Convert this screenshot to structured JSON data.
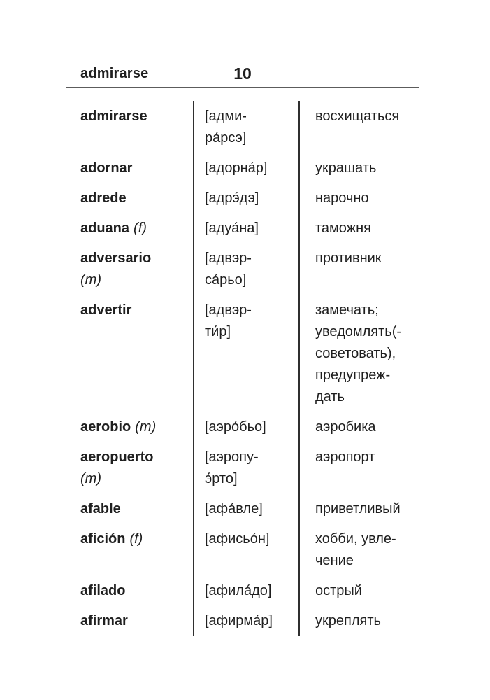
{
  "header": {
    "running_head": "admirarse",
    "page_number": "10"
  },
  "colors": {
    "background": "#ffffff",
    "text": "#1f1f1f",
    "rule": "#5c5c5c",
    "divider": "#2f2f2f"
  },
  "table": {
    "columns": [
      "spanish-word",
      "transcription",
      "russian-translation"
    ],
    "entries": [
      {
        "word": "admirarse",
        "gender": "",
        "transcription": "[адми-\nра́рсэ]",
        "translation": "восхищаться"
      },
      {
        "word": "adornar",
        "gender": "",
        "transcription": "[адорна́р]",
        "translation": "украшать"
      },
      {
        "word": "adrede",
        "gender": "",
        "transcription": "[адрэ́дэ]",
        "translation": "нарочно"
      },
      {
        "word": "aduana",
        "gender": "(f)",
        "transcription": "[адуа́на]",
        "translation": "таможня"
      },
      {
        "word": "adversario",
        "gender": "(m)",
        "transcription": "[адвэр-\nса́рьо]",
        "translation": "противник"
      },
      {
        "word": "advertir",
        "gender": "",
        "transcription": "[адвэр-\nти́р]",
        "translation": "замечать;\nуведомлять(-\nсоветовать),\nпредупреж-\nдать"
      },
      {
        "word": "aerobio",
        "gender": "(m)",
        "transcription": "[аэро́бьо]",
        "translation": "аэробика"
      },
      {
        "word": "aeropuerto",
        "gender": "(m)",
        "transcription": "[аэропу-\nэ́рто]",
        "translation": "аэропорт"
      },
      {
        "word": "afable",
        "gender": "",
        "transcription": "[афа́вле]",
        "translation": "приветливый"
      },
      {
        "word": "afición",
        "gender": "(f)",
        "transcription": "[афисьо́н]",
        "translation": "хобби, увле-\nчение"
      },
      {
        "word": "afilado",
        "gender": "",
        "transcription": "[афила́до]",
        "translation": "острый"
      },
      {
        "word": "afirmar",
        "gender": "",
        "transcription": "[афирма́р]",
        "translation": "укреплять"
      }
    ]
  }
}
